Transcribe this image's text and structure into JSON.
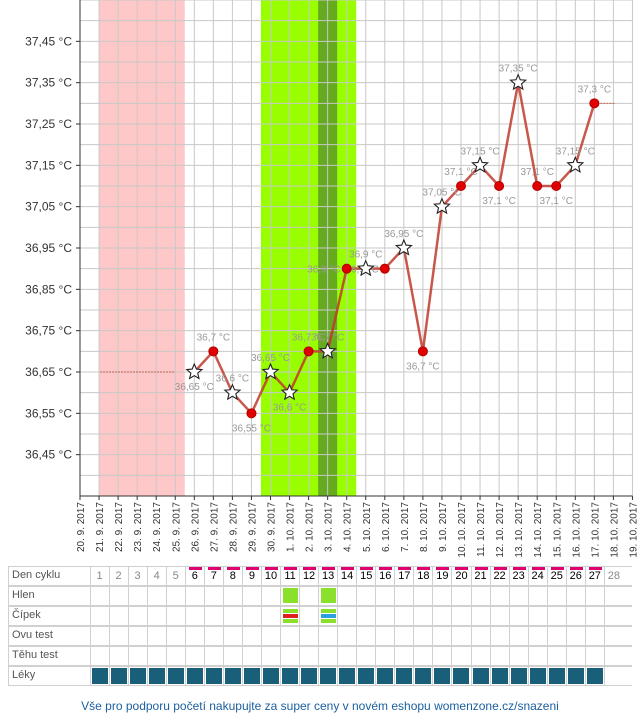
{
  "chart_data": {
    "type": "line",
    "title": "",
    "xlabel": "",
    "ylabel": "",
    "ylim": [
      36.35,
      37.55
    ],
    "yticks": [
      "36,45 °C",
      "36,55 °C",
      "36,65 °C",
      "36,75 °C",
      "36,85 °C",
      "36,95 °C",
      "37,05 °C",
      "37,15 °C",
      "37,25 °C",
      "37,35 °C",
      "37,45 °C"
    ],
    "ytick_values": [
      36.45,
      36.55,
      36.65,
      36.75,
      36.85,
      36.95,
      37.05,
      37.15,
      37.25,
      37.35,
      37.45
    ],
    "x": [
      "20. 9. 2017",
      "21. 9. 2017",
      "22. 9. 2017",
      "23. 9. 2017",
      "24. 9. 2017",
      "25. 9. 2017",
      "26. 9. 2017",
      "27. 9. 2017",
      "28. 9. 2017",
      "29. 9. 2017",
      "30. 9. 2017",
      "1. 10. 2017",
      "2. 10. 2017",
      "3. 10. 2017",
      "4. 10. 2017",
      "5. 10. 2017",
      "6. 10. 2017",
      "7. 10. 2017",
      "8. 10. 2017",
      "9. 10. 2017",
      "10. 10. 2017",
      "11. 10. 2017",
      "12. 10. 2017",
      "13. 10. 2017",
      "14. 10. 2017",
      "15. 10. 2017",
      "16. 10. 2017",
      "17. 10. 2017",
      "18. 10. 2017",
      "19. 10. 2017"
    ],
    "series": [
      {
        "values": [
          null,
          null,
          null,
          null,
          null,
          null,
          36.65,
          36.7,
          36.6,
          36.55,
          36.65,
          36.6,
          36.7,
          36.7,
          36.9,
          36.9,
          36.9,
          36.95,
          36.7,
          37.05,
          37.1,
          37.15,
          37.1,
          37.35,
          37.1,
          37.1,
          37.15,
          37.3,
          null,
          null
        ],
        "markers": [
          "",
          "",
          "",
          "",
          "",
          "",
          "star",
          "dot",
          "star",
          "dot",
          "star",
          "star",
          "dot",
          "star",
          "dot",
          "star",
          "dot",
          "star",
          "dot",
          "star",
          "dot",
          "star",
          "dot",
          "star",
          "dot",
          "dot",
          "star",
          "dot",
          "",
          ""
        ],
        "labels": [
          "",
          "",
          "",
          "",
          "",
          "",
          "36,65 °C",
          "36,7 °C",
          "36,6 °C",
          "36,55 °C",
          "36,65 °C",
          "36,6 °C",
          "36,7 °C",
          "36,7 °C",
          "36,9 °C",
          "36,9 °C",
          "36,9 °C",
          "36,95 °C",
          "36,7 °C",
          "37,05 °C",
          "37,1 °C",
          "37,15 °C",
          "37,1 °C",
          "37,35 °C",
          "37,1 °C",
          "37,1 °C",
          "37,15 °C",
          "37,3 °C",
          "",
          ""
        ],
        "label_pos": [
          "",
          "",
          "",
          "",
          "",
          "",
          "below",
          "above",
          "above",
          "below",
          "above",
          "below",
          "above",
          "above",
          "left",
          "above",
          "left",
          "above",
          "below",
          "above",
          "above",
          "above",
          "below",
          "above",
          "above",
          "below",
          "above",
          "above",
          "",
          ""
        ]
      }
    ],
    "extrapolated_temp": 36.65,
    "extrapolated_before_days": [
      0,
      5
    ],
    "extrapolated_after_days": [
      27,
      28
    ],
    "period_days": [
      1,
      5
    ],
    "fertile_days": [
      10,
      14
    ],
    "peak_day": 13,
    "colors": {
      "line": "#c0392b",
      "period": "#ffc8c8",
      "fertile": "#99ff00",
      "peak": "#66aa22",
      "magenta": "#e0006f",
      "leky": "#1a5f7a"
    }
  },
  "table": {
    "rows": [
      "Den cyklu",
      "Hlen",
      "Čípek",
      "Ovu test",
      "Těhu test",
      "Léky"
    ],
    "cycle_days": [
      "",
      "1",
      "2",
      "3",
      "4",
      "5",
      "6",
      "7",
      "8",
      "9",
      "10",
      "11",
      "12",
      "13",
      "14",
      "15",
      "16",
      "17",
      "18",
      "19",
      "20",
      "21",
      "22",
      "23",
      "24",
      "25",
      "26",
      "27",
      "28"
    ],
    "hlen_days": [
      11,
      13
    ],
    "cipek_days": [
      11,
      13
    ],
    "leky_from": 1,
    "leky_to": 27
  },
  "footer": "Vše pro podporu početí nakupujte za super ceny v novém eshopu womenzone.cz/snazeni"
}
